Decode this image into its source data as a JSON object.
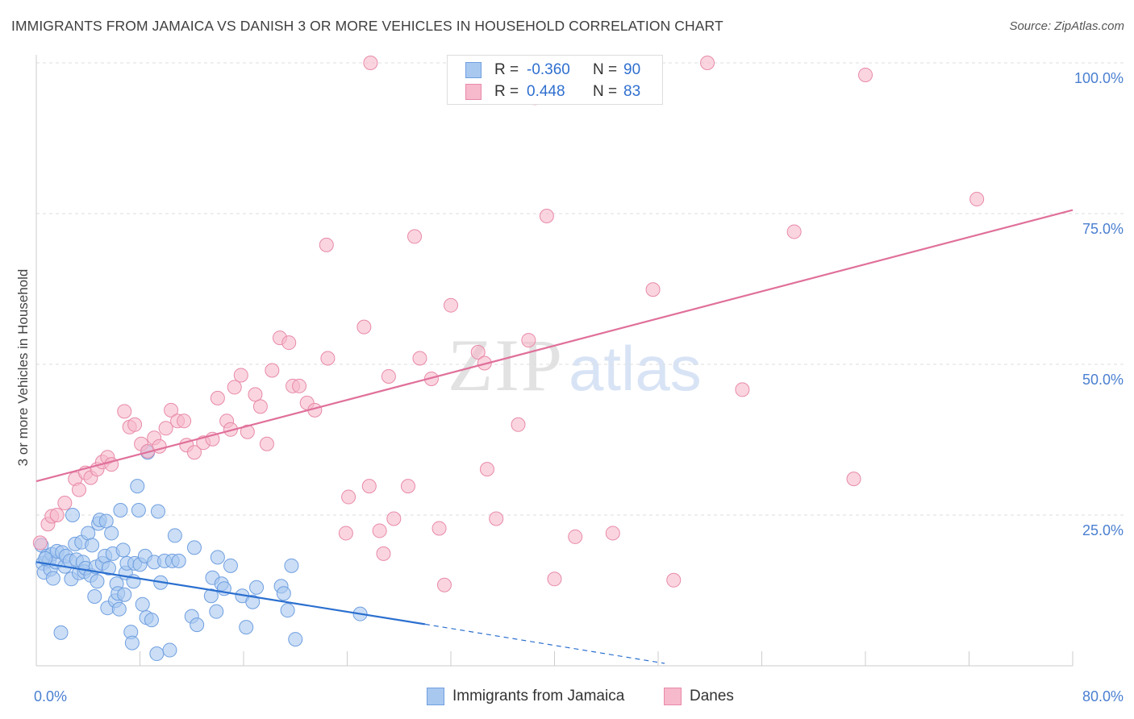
{
  "header": {
    "title": "IMMIGRANTS FROM JAMAICA VS DANISH 3 OR MORE VEHICLES IN HOUSEHOLD CORRELATION CHART",
    "source": "Source: ZipAtlas.com"
  },
  "watermark": {
    "zip": "ZIP",
    "atlas": "atlas"
  },
  "stats": [
    {
      "r_label": "R =",
      "r_value": "-0.360",
      "n_label": "N =",
      "n_value": "90",
      "color": "#a9c8f0",
      "border": "#6f9fe0"
    },
    {
      "r_label": "R =",
      "r_value": "0.448",
      "n_label": "N =",
      "n_value": "83",
      "color": "#f7b9cc",
      "border": "#e88aa8"
    }
  ],
  "legend": [
    {
      "label": "Immigrants from Jamaica",
      "color": "#a9c8f0",
      "border": "#6f9fe0"
    },
    {
      "label": "Danes",
      "color": "#f7b9cc",
      "border": "#e88aa8"
    }
  ],
  "chart_data": {
    "type": "scatter",
    "title": "IMMIGRANTS FROM JAMAICA VS DANISH 3 OR MORE VEHICLES IN HOUSEHOLD CORRELATION CHART",
    "xlabel": "",
    "ylabel": "3 or more Vehicles in Household",
    "xlim": [
      0,
      80
    ],
    "ylim": [
      0,
      100
    ],
    "x_tick_labels": [
      {
        "value": 0,
        "label": "0.0%"
      },
      {
        "value": 80,
        "label": "80.0%"
      }
    ],
    "y_tick_labels": [
      {
        "value": 25,
        "label": "25.0%"
      },
      {
        "value": 50,
        "label": "50.0%"
      },
      {
        "value": 75,
        "label": "75.0%"
      },
      {
        "value": 100,
        "label": "100.0%"
      }
    ],
    "grid": true,
    "legend_position": "bottom",
    "series": [
      {
        "name": "Immigrants from Jamaica",
        "color": "#a9c8f0",
        "stroke": "#6f9fe0",
        "trend": {
          "x": [
            0,
            30
          ],
          "y": [
            17.2,
            6.9
          ],
          "color": "#2b6fcf"
        },
        "trend_extension": {
          "x": [
            30,
            48.5
          ],
          "y": [
            6.9,
            0.4
          ]
        },
        "points": [
          [
            0.4,
            20.0
          ],
          [
            0.5,
            17.0
          ],
          [
            0.6,
            15.5
          ],
          [
            0.8,
            18.2
          ],
          [
            1.0,
            17.5
          ],
          [
            1.1,
            16.0
          ],
          [
            1.2,
            18.5
          ],
          [
            1.3,
            14.5
          ],
          [
            1.5,
            17.2
          ],
          [
            1.6,
            19.0
          ],
          [
            1.9,
            5.5
          ],
          [
            2.0,
            18.8
          ],
          [
            2.2,
            16.5
          ],
          [
            2.3,
            18.2
          ],
          [
            2.6,
            17.4
          ],
          [
            2.7,
            14.4
          ],
          [
            2.8,
            25.0
          ],
          [
            3.0,
            20.2
          ],
          [
            3.1,
            17.6
          ],
          [
            3.3,
            15.4
          ],
          [
            3.5,
            20.5
          ],
          [
            3.6,
            17.2
          ],
          [
            3.7,
            15.6
          ],
          [
            3.8,
            16.2
          ],
          [
            4.0,
            22.0
          ],
          [
            4.2,
            15.0
          ],
          [
            4.3,
            20.0
          ],
          [
            4.5,
            11.5
          ],
          [
            4.6,
            16.4
          ],
          [
            4.7,
            14.0
          ],
          [
            4.8,
            23.6
          ],
          [
            4.9,
            24.2
          ],
          [
            5.1,
            17.0
          ],
          [
            5.3,
            18.2
          ],
          [
            5.4,
            24.0
          ],
          [
            5.5,
            9.6
          ],
          [
            5.6,
            16.2
          ],
          [
            5.8,
            22.0
          ],
          [
            5.9,
            18.6
          ],
          [
            6.1,
            10.8
          ],
          [
            6.2,
            13.6
          ],
          [
            6.3,
            12.0
          ],
          [
            6.4,
            9.4
          ],
          [
            6.5,
            25.8
          ],
          [
            6.7,
            19.2
          ],
          [
            6.8,
            11.8
          ],
          [
            6.9,
            15.4
          ],
          [
            7.0,
            17.0
          ],
          [
            7.3,
            5.6
          ],
          [
            7.4,
            3.8
          ],
          [
            7.5,
            14.0
          ],
          [
            7.6,
            17.0
          ],
          [
            7.8,
            29.8
          ],
          [
            7.9,
            25.8
          ],
          [
            8.0,
            16.8
          ],
          [
            8.2,
            10.2
          ],
          [
            8.4,
            18.2
          ],
          [
            8.5,
            8.0
          ],
          [
            8.6,
            35.4
          ],
          [
            8.9,
            7.6
          ],
          [
            9.1,
            17.2
          ],
          [
            9.3,
            2.0
          ],
          [
            9.4,
            25.6
          ],
          [
            9.6,
            13.8
          ],
          [
            9.9,
            17.4
          ],
          [
            10.3,
            2.6
          ],
          [
            10.5,
            17.4
          ],
          [
            10.7,
            21.6
          ],
          [
            11.0,
            17.4
          ],
          [
            12.0,
            8.2
          ],
          [
            12.2,
            19.6
          ],
          [
            12.4,
            6.8
          ],
          [
            13.5,
            11.6
          ],
          [
            13.6,
            14.6
          ],
          [
            13.9,
            9.0
          ],
          [
            14.0,
            18.0
          ],
          [
            14.3,
            13.6
          ],
          [
            14.5,
            12.8
          ],
          [
            15.0,
            16.6
          ],
          [
            15.9,
            11.6
          ],
          [
            16.2,
            6.4
          ],
          [
            16.7,
            10.6
          ],
          [
            17.0,
            13.0
          ],
          [
            18.9,
            13.2
          ],
          [
            19.1,
            12.0
          ],
          [
            19.4,
            9.2
          ],
          [
            19.7,
            16.6
          ],
          [
            20.0,
            4.4
          ],
          [
            25.0,
            8.6
          ],
          [
            0.7,
            17.8
          ]
        ]
      },
      {
        "name": "Danes",
        "color": "#f7b9cc",
        "stroke": "#e88aa8",
        "trend": {
          "x": [
            0,
            80
          ],
          "y": [
            30.6,
            75.6
          ],
          "color": "#e0709a"
        },
        "points": [
          [
            0.3,
            20.4
          ],
          [
            0.9,
            23.5
          ],
          [
            1.2,
            24.8
          ],
          [
            1.6,
            25.0
          ],
          [
            2.2,
            27.0
          ],
          [
            3.0,
            31.0
          ],
          [
            3.3,
            29.2
          ],
          [
            3.8,
            32.0
          ],
          [
            4.2,
            31.2
          ],
          [
            4.7,
            32.6
          ],
          [
            5.1,
            33.8
          ],
          [
            5.5,
            34.6
          ],
          [
            5.8,
            33.4
          ],
          [
            6.8,
            42.2
          ],
          [
            7.2,
            39.6
          ],
          [
            7.6,
            40.0
          ],
          [
            8.1,
            36.8
          ],
          [
            8.6,
            35.6
          ],
          [
            9.1,
            37.8
          ],
          [
            9.5,
            36.4
          ],
          [
            10.0,
            39.4
          ],
          [
            10.4,
            42.4
          ],
          [
            10.9,
            40.6
          ],
          [
            11.4,
            40.6
          ],
          [
            11.6,
            36.6
          ],
          [
            12.2,
            35.4
          ],
          [
            12.9,
            37.0
          ],
          [
            13.6,
            37.6
          ],
          [
            14.0,
            44.4
          ],
          [
            14.7,
            40.6
          ],
          [
            15.0,
            39.2
          ],
          [
            15.3,
            46.2
          ],
          [
            15.8,
            48.2
          ],
          [
            16.3,
            38.8
          ],
          [
            16.9,
            45.0
          ],
          [
            17.3,
            43.0
          ],
          [
            17.8,
            36.8
          ],
          [
            18.2,
            49.0
          ],
          [
            18.8,
            54.4
          ],
          [
            19.5,
            53.6
          ],
          [
            19.8,
            46.4
          ],
          [
            20.3,
            46.4
          ],
          [
            20.9,
            43.6
          ],
          [
            21.5,
            42.4
          ],
          [
            22.4,
            69.8
          ],
          [
            22.5,
            51.0
          ],
          [
            23.9,
            22.0
          ],
          [
            24.1,
            28.0
          ],
          [
            25.3,
            56.2
          ],
          [
            25.7,
            29.8
          ],
          [
            25.8,
            100.0
          ],
          [
            26.5,
            22.4
          ],
          [
            26.8,
            18.6
          ],
          [
            27.2,
            48.0
          ],
          [
            27.6,
            24.4
          ],
          [
            28.7,
            29.8
          ],
          [
            29.2,
            71.2
          ],
          [
            29.6,
            51.0
          ],
          [
            30.5,
            47.6
          ],
          [
            31.1,
            22.8
          ],
          [
            31.5,
            13.4
          ],
          [
            32.0,
            59.8
          ],
          [
            34.1,
            52.0
          ],
          [
            34.6,
            50.2
          ],
          [
            34.8,
            32.6
          ],
          [
            35.5,
            24.4
          ],
          [
            37.2,
            40.0
          ],
          [
            38.0,
            54.0
          ],
          [
            38.5,
            94.2
          ],
          [
            39.4,
            74.6
          ],
          [
            40.0,
            14.4
          ],
          [
            41.6,
            21.4
          ],
          [
            43.7,
            100.0
          ],
          [
            44.1,
            100.0
          ],
          [
            44.5,
            22.0
          ],
          [
            47.6,
            62.4
          ],
          [
            49.2,
            14.2
          ],
          [
            51.8,
            100.0
          ],
          [
            54.5,
            45.8
          ],
          [
            58.5,
            72.0
          ],
          [
            63.1,
            31.0
          ],
          [
            64.0,
            98.0
          ],
          [
            72.6,
            77.4
          ]
        ]
      }
    ]
  }
}
